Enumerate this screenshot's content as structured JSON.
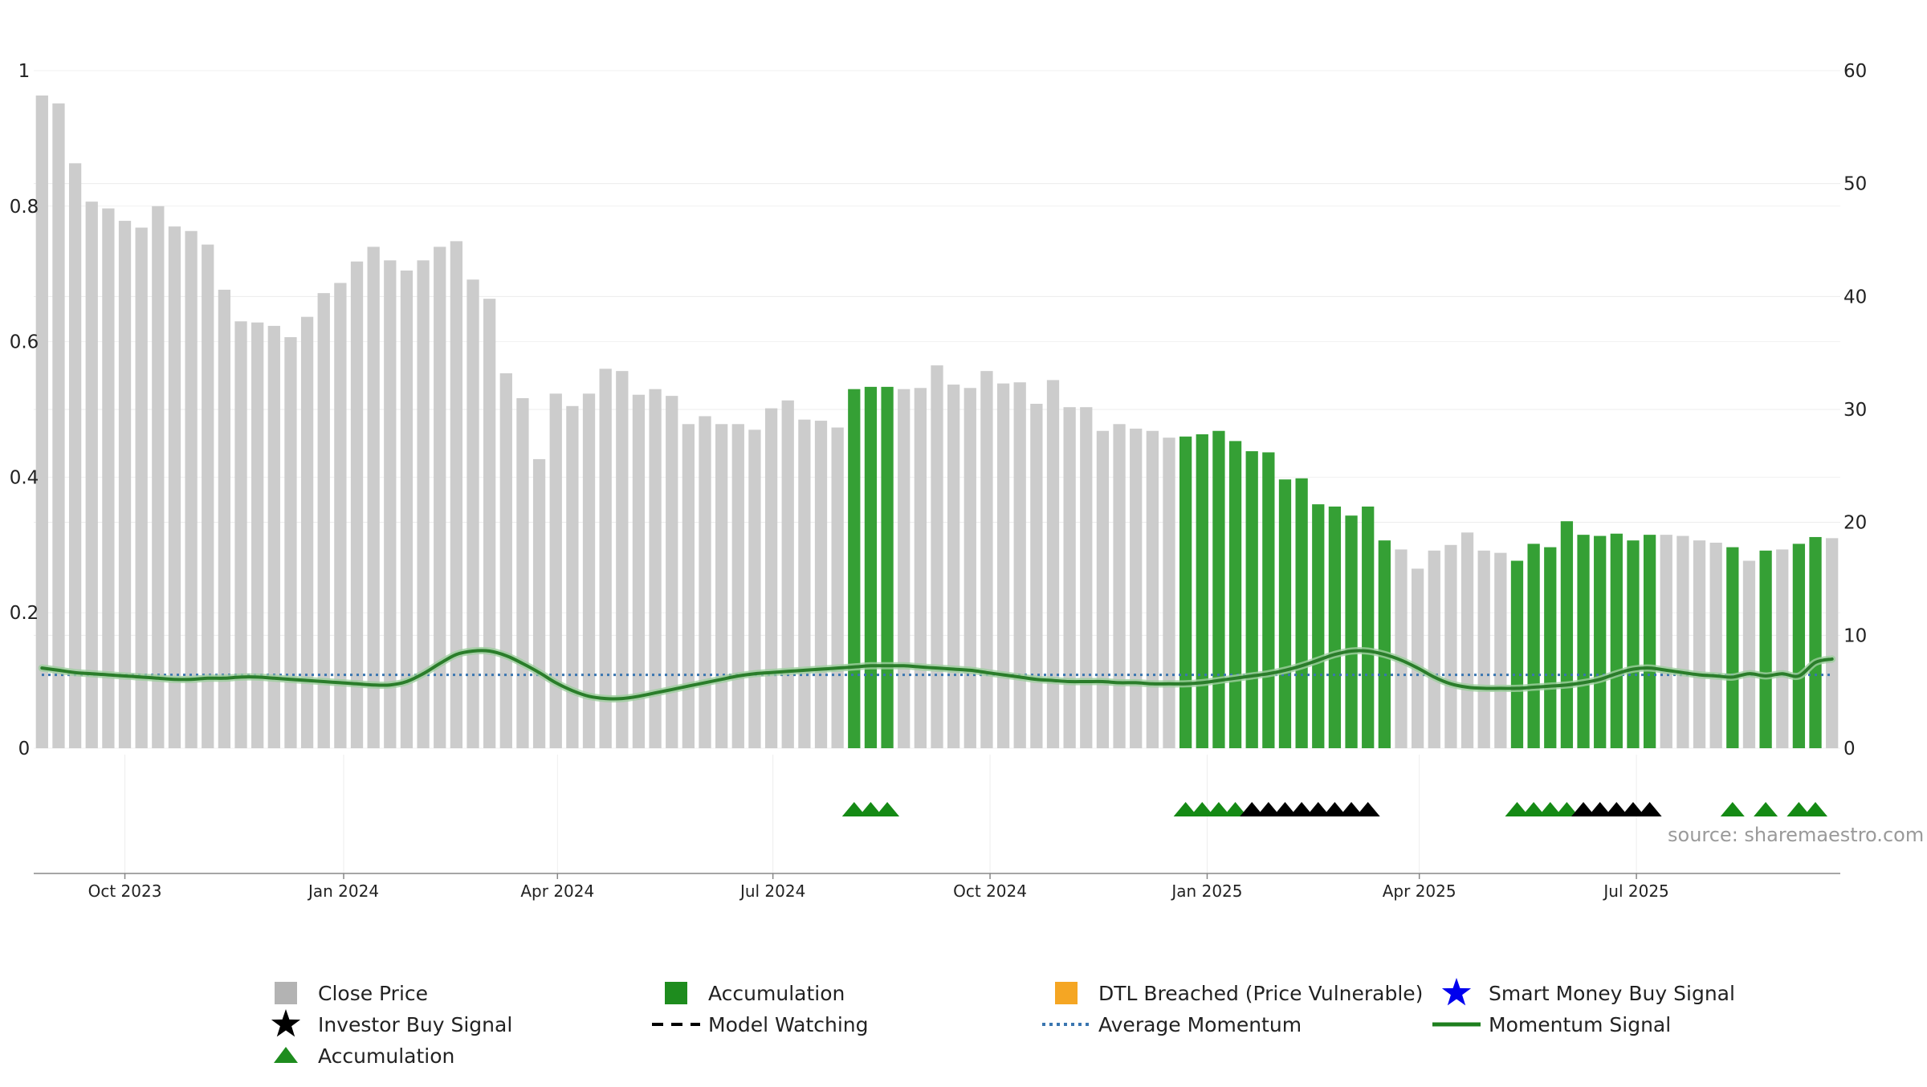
{
  "source_text": "source: sharemaestro.com",
  "legend": [
    {
      "label": "Close Price",
      "icon": "gray-square",
      "color": "#b3b3b3"
    },
    {
      "label": "Accumulation",
      "icon": "green-square",
      "color": "#1e8c1e"
    },
    {
      "label": "DTL Breached (Price Vulnerable)",
      "icon": "orange-square",
      "color": "#f5a623"
    },
    {
      "label": "Smart Money Buy Signal",
      "icon": "blue-star",
      "color": "#0000ee"
    },
    {
      "label": "Investor Buy Signal",
      "icon": "black-star",
      "color": "#000000"
    },
    {
      "label": "Model Watching",
      "icon": "black-dashed-line",
      "color": "#000000"
    },
    {
      "label": "Average Momentum",
      "icon": "blue-dotted-line",
      "color": "#3a76b0"
    },
    {
      "label": "Momentum Signal",
      "icon": "green-line",
      "color": "#1e7f1e"
    },
    {
      "label": "Accumulation",
      "icon": "green-triangle",
      "color": "#1e8c1e"
    }
  ],
  "chart_data": {
    "type": "bar",
    "left_axis": {
      "ticks": [
        "0",
        "0.2",
        "0.4",
        "0.6",
        "0.8",
        "1"
      ],
      "range": [
        0,
        1
      ]
    },
    "right_axis": {
      "ticks": [
        "0",
        "10",
        "20",
        "30",
        "40",
        "50",
        "60"
      ],
      "range": [
        0,
        60
      ]
    },
    "x_ticks": [
      {
        "label": "Oct 2023",
        "index": 5
      },
      {
        "label": "Jan 2024",
        "index": 18.2
      },
      {
        "label": "Apr 2024",
        "index": 31.1
      },
      {
        "label": "Jul 2024",
        "index": 44.1
      },
      {
        "label": "Oct 2024",
        "index": 57.2
      },
      {
        "label": "Jan 2025",
        "index": 70.3
      },
      {
        "label": "Apr 2025",
        "index": 83.1
      },
      {
        "label": "Jul 2025",
        "index": 96.2
      }
    ],
    "grid": true,
    "legend_position": "bottom",
    "colors": {
      "close": "#cccccc",
      "accumulation": "#35a035",
      "momentum": "#2a7d2a",
      "average": "#3a76b0",
      "triangle_green": "#158a15",
      "triangle_black": "#000000"
    },
    "close_prices": [
      57.8,
      57.1,
      51.8,
      48.4,
      47.8,
      46.7,
      46.1,
      48.0,
      46.2,
      45.8,
      44.6,
      40.6,
      37.8,
      37.7,
      37.4,
      36.4,
      38.2,
      40.3,
      41.2,
      43.1,
      44.4,
      43.2,
      42.3,
      43.2,
      44.4,
      44.9,
      41.5,
      39.8,
      33.2,
      31.0,
      25.6,
      31.4,
      30.3,
      31.4,
      33.6,
      33.4,
      31.3,
      31.8,
      31.2,
      28.7,
      29.4,
      28.7,
      28.7,
      28.2,
      30.1,
      30.8,
      29.1,
      29.0,
      28.4,
      31.8,
      32.0,
      32.0,
      31.8,
      31.9,
      33.9,
      32.2,
      31.9,
      33.4,
      32.3,
      32.4,
      30.5,
      32.6,
      30.2,
      30.2,
      28.1,
      28.7,
      28.3,
      28.1,
      27.5,
      27.6,
      27.8,
      28.1,
      27.2,
      26.3,
      26.2,
      23.8,
      23.9,
      21.6,
      21.4,
      20.6,
      21.4,
      18.4,
      17.6,
      15.9,
      17.5,
      18.0,
      19.1,
      17.5,
      17.3,
      16.6,
      18.1,
      17.8,
      20.1,
      18.9,
      18.8,
      19.0,
      18.4,
      18.9,
      18.9,
      18.8,
      18.4,
      18.2,
      17.8,
      16.6,
      17.5,
      17.6,
      18.1,
      18.7,
      18.6
    ],
    "accumulation_bars": [
      49,
      50,
      51,
      69,
      70,
      71,
      72,
      73,
      74,
      75,
      76,
      77,
      78,
      79,
      80,
      81,
      89,
      90,
      91,
      92,
      93,
      94,
      95,
      96,
      97,
      102,
      104,
      106,
      107
    ],
    "momentum_signal": [
      7.1,
      6.9,
      6.7,
      6.6,
      6.5,
      6.4,
      6.3,
      6.2,
      6.1,
      6.1,
      6.2,
      6.2,
      6.3,
      6.3,
      6.2,
      6.1,
      6.0,
      5.9,
      5.8,
      5.7,
      5.6,
      5.6,
      5.9,
      6.6,
      7.5,
      8.3,
      8.6,
      8.6,
      8.2,
      7.5,
      6.7,
      5.8,
      5.1,
      4.6,
      4.4,
      4.4,
      4.6,
      4.9,
      5.2,
      5.5,
      5.8,
      6.1,
      6.4,
      6.6,
      6.7,
      6.8,
      6.9,
      7.0,
      7.1,
      7.2,
      7.3,
      7.3,
      7.3,
      7.2,
      7.1,
      7.0,
      6.9,
      6.7,
      6.5,
      6.3,
      6.1,
      6.0,
      5.9,
      5.9,
      5.9,
      5.8,
      5.8,
      5.7,
      5.7,
      5.7,
      5.8,
      6.0,
      6.2,
      6.4,
      6.6,
      6.9,
      7.3,
      7.8,
      8.3,
      8.6,
      8.6,
      8.3,
      7.8,
      7.1,
      6.3,
      5.7,
      5.4,
      5.3,
      5.3,
      5.3,
      5.4,
      5.5,
      5.6,
      5.8,
      6.1,
      6.6,
      7.0,
      7.1,
      6.9,
      6.7,
      6.5,
      6.4,
      6.3,
      6.6,
      6.4,
      6.6,
      6.4,
      7.6,
      7.9
    ],
    "average_momentum": 6.5,
    "green_triangles": [
      49,
      50,
      51,
      69,
      70,
      71,
      72,
      89,
      90,
      91,
      92,
      102,
      104,
      106,
      107
    ],
    "black_triangles": [
      73,
      74,
      75,
      76,
      77,
      78,
      79,
      80,
      93,
      94,
      95,
      96,
      97
    ]
  }
}
